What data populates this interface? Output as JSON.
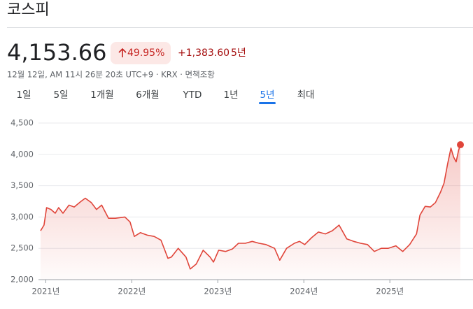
{
  "header": {
    "title": "코스피"
  },
  "quote": {
    "price": "4,153.66",
    "change_percent": "49.95%",
    "change": "+1,383.60",
    "period": "5년",
    "timestamp": "12월 12일, AM 11시 26분 20초 UTC+9 · KRX · 면책조항"
  },
  "tabs": {
    "items": [
      "1일",
      "5일",
      "1개월",
      "6개월",
      "YTD",
      "1년",
      "5년",
      "최대"
    ],
    "selected": 6
  },
  "chart_data": {
    "type": "line",
    "color": "#e0453a",
    "grid": true,
    "xlim": [
      2020.94,
      2025.82
    ],
    "ylim": [
      2000,
      4500
    ],
    "xticks": [
      {
        "value": 2021,
        "label": "2021년"
      },
      {
        "value": 2022,
        "label": "2022년"
      },
      {
        "value": 2023,
        "label": "2023년"
      },
      {
        "value": 2024,
        "label": "2024년"
      },
      {
        "value": 2025,
        "label": "2025년"
      }
    ],
    "yticks": [
      {
        "value": 2000,
        "label": "2,000"
      },
      {
        "value": 2500,
        "label": "2,500"
      },
      {
        "value": 3000,
        "label": "3,000"
      },
      {
        "value": 3500,
        "label": "3,500"
      },
      {
        "value": 4000,
        "label": "4,000"
      },
      {
        "value": 4500,
        "label": "4,500"
      }
    ],
    "x": [
      2020.94,
      2020.98,
      2021.01,
      2021.06,
      2021.11,
      2021.15,
      2021.2,
      2021.27,
      2021.33,
      2021.41,
      2021.46,
      2021.53,
      2021.59,
      2021.65,
      2021.73,
      2021.81,
      2021.92,
      2021.98,
      2022.03,
      2022.1,
      2022.18,
      2022.26,
      2022.34,
      2022.42,
      2022.46,
      2022.54,
      2022.63,
      2022.68,
      2022.75,
      2022.83,
      2022.91,
      2022.95,
      2023.01,
      2023.09,
      2023.17,
      2023.24,
      2023.32,
      2023.4,
      2023.48,
      2023.56,
      2023.66,
      2023.72,
      2023.8,
      2023.89,
      2023.95,
      2024.01,
      2024.09,
      2024.17,
      2024.25,
      2024.33,
      2024.41,
      2024.5,
      2024.58,
      2024.66,
      2024.74,
      2024.82,
      2024.9,
      2024.98,
      2025.07,
      2025.15,
      2025.23,
      2025.31,
      2025.35,
      2025.41,
      2025.47,
      2025.53,
      2025.59,
      2025.63,
      2025.67,
      2025.71,
      2025.74,
      2025.77,
      2025.8,
      2025.82
    ],
    "values": [
      2780,
      2870,
      3150,
      3120,
      3060,
      3150,
      3060,
      3190,
      3160,
      3250,
      3300,
      3230,
      3120,
      3190,
      2980,
      2980,
      3000,
      2920,
      2690,
      2750,
      2710,
      2690,
      2630,
      2340,
      2360,
      2500,
      2360,
      2170,
      2250,
      2470,
      2360,
      2280,
      2470,
      2450,
      2490,
      2580,
      2580,
      2610,
      2580,
      2560,
      2500,
      2310,
      2500,
      2580,
      2610,
      2560,
      2670,
      2760,
      2730,
      2780,
      2870,
      2650,
      2610,
      2580,
      2560,
      2450,
      2500,
      2500,
      2540,
      2450,
      2560,
      2730,
      3030,
      3170,
      3160,
      3230,
      3400,
      3540,
      3840,
      4100,
      3960,
      3880,
      4070,
      4153.66
    ]
  }
}
